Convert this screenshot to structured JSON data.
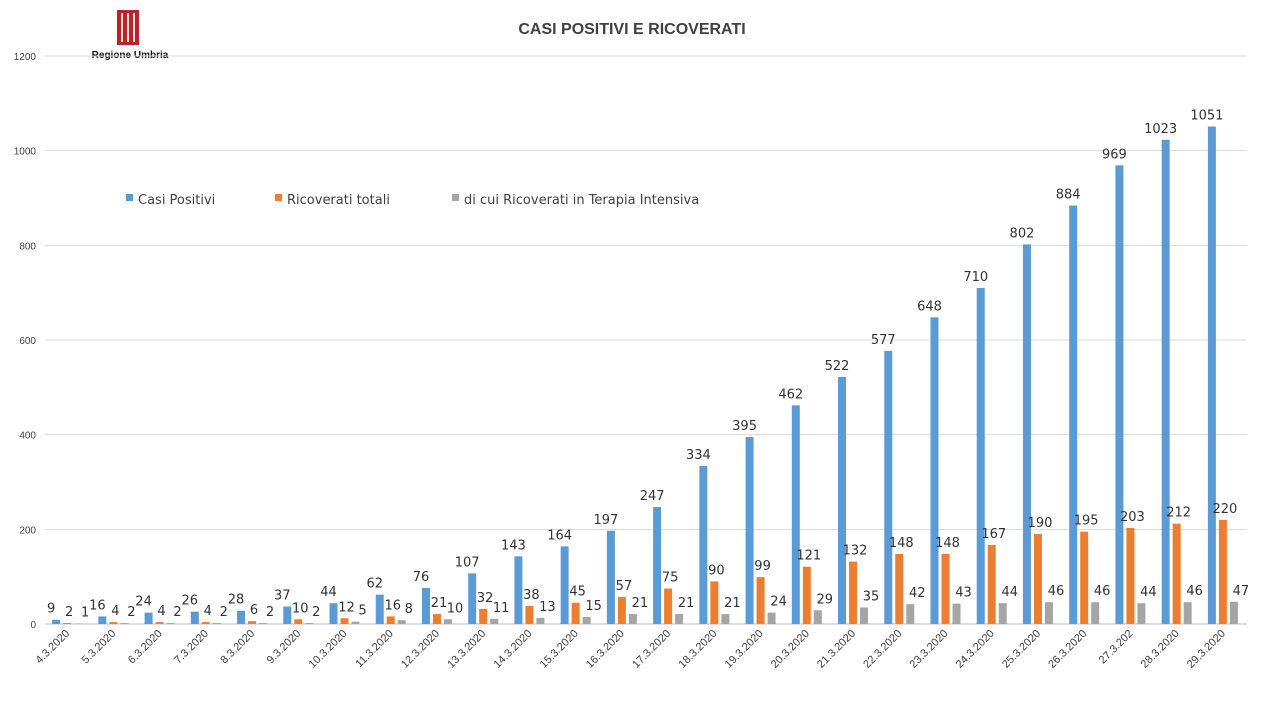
{
  "logo": {
    "text": "Regione Umbria",
    "color": "#b8242c"
  },
  "chart_data": {
    "type": "bar",
    "title": "CASI POSITIVI E RICOVERATI",
    "xlabel": "",
    "ylabel": "",
    "ylim": [
      0,
      1200
    ],
    "yticks": [
      0,
      200,
      400,
      600,
      800,
      1000,
      1200
    ],
    "grid": true,
    "legend_position": "top-left",
    "categories": [
      "4.3.2020",
      "5.3.2020",
      "6.3.2020",
      "7.3.2020",
      "8.3.2020",
      "9.3.2020",
      "10.3.2020",
      "11.3.2020",
      "12.3.2020",
      "13.3.2020",
      "14.3.2020",
      "15.3.2020",
      "16.3.2020",
      "17.3.2020",
      "18.3.2020",
      "19.3.2020",
      "20.3.2020",
      "21.3.2020",
      "22.3.2020",
      "23.3.2020",
      "24.3.2020",
      "25.3.2020",
      "26.3.2020",
      "27.3.202",
      "28.3.2020",
      "29.3.2020"
    ],
    "series": [
      {
        "name": "Casi Positivi",
        "color": "#5b9bd5",
        "values": [
          9,
          16,
          24,
          26,
          28,
          37,
          44,
          62,
          76,
          107,
          143,
          164,
          197,
          247,
          334,
          395,
          462,
          522,
          577,
          648,
          710,
          802,
          884,
          969,
          1023,
          1051
        ]
      },
      {
        "name": "Ricoverati totali",
        "color": "#ed7d31",
        "values": [
          2,
          4,
          4,
          4,
          6,
          10,
          12,
          16,
          21,
          32,
          38,
          45,
          57,
          75,
          90,
          99,
          121,
          132,
          148,
          148,
          167,
          190,
          195,
          203,
          212,
          220
        ]
      },
      {
        "name": "di cui Ricoverati in Terapia Intensiva",
        "color": "#a5a5a5",
        "values": [
          1,
          2,
          2,
          2,
          2,
          2,
          5,
          8,
          10,
          11,
          13,
          15,
          21,
          21,
          21,
          24,
          29,
          35,
          42,
          43,
          44,
          46,
          46,
          44,
          46,
          47
        ]
      }
    ]
  }
}
